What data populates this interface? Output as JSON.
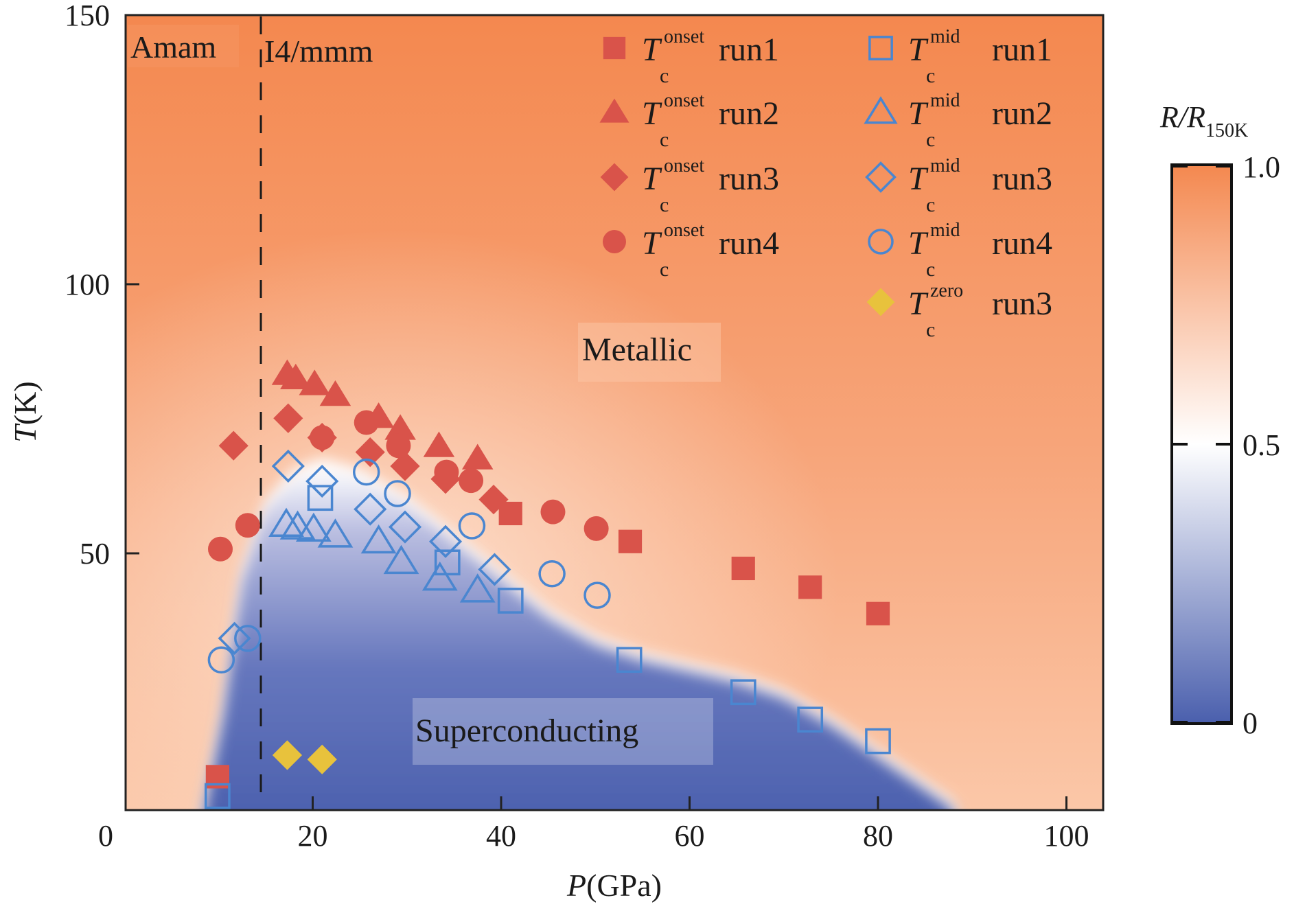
{
  "chart_data": {
    "type": "scatter",
    "title": "",
    "xlabel": "P(GPa)",
    "xlabel_italic": "P",
    "xlabel_unit": "(GPa)",
    "ylabel": "T(K)",
    "ylabel_italic": "T",
    "ylabel_unit": "(K)",
    "xlim": [
      0,
      104
    ],
    "ylim": [
      2.3,
      150
    ],
    "xticks": [
      0,
      20,
      40,
      60,
      80,
      100
    ],
    "yticks": [
      50,
      100,
      150
    ],
    "xtick_labels": [
      "0",
      "20",
      "40",
      "60",
      "80",
      "100"
    ],
    "ytick_labels": [
      "50",
      "100",
      "150"
    ],
    "grid": false,
    "legend_position": "top-right",
    "background": "heatmap of R/R150K (blue = superconducting, orange = metallic)",
    "phase_boundary_P": 14.5,
    "region_labels": {
      "left_phase": "Amam",
      "right_phase": "I4/mmm",
      "metallic": "Metallic",
      "superconducting": "Superconducting"
    },
    "series": [
      {
        "name": "Tc onset run1",
        "symbol": "T",
        "sub": "c",
        "sup": "onset",
        "run": "run1",
        "marker": "square",
        "filled": true,
        "color": "#d9534a",
        "points": [
          [
            9.9,
            8.5
          ],
          [
            41.0,
            57.4
          ],
          [
            53.7,
            52.2
          ],
          [
            65.7,
            47.2
          ],
          [
            72.8,
            43.7
          ],
          [
            80.0,
            38.8
          ]
        ]
      },
      {
        "name": "Tc onset run2",
        "symbol": "T",
        "sub": "c",
        "sup": "onset",
        "run": "run2",
        "marker": "triangle",
        "filled": true,
        "color": "#d9534a",
        "points": [
          [
            17.3,
            83.4
          ],
          [
            18.2,
            82.6
          ],
          [
            20.2,
            81.5
          ],
          [
            22.4,
            79.5
          ],
          [
            27.0,
            75.4
          ],
          [
            29.3,
            73.2
          ],
          [
            33.4,
            70.0
          ],
          [
            37.5,
            67.7
          ]
        ]
      },
      {
        "name": "Tc onset run3",
        "symbol": "T",
        "sub": "c",
        "sup": "onset",
        "run": "run3",
        "marker": "diamond",
        "filled": true,
        "color": "#d9534a",
        "points": [
          [
            11.6,
            70.0
          ],
          [
            17.4,
            75.1
          ],
          [
            21.0,
            71.5
          ],
          [
            26.1,
            68.8
          ],
          [
            29.8,
            66.2
          ],
          [
            34.1,
            63.8
          ],
          [
            39.2,
            60.0
          ]
        ]
      },
      {
        "name": "Tc onset run4",
        "symbol": "T",
        "sub": "c",
        "sup": "onset",
        "run": "run4",
        "marker": "circle",
        "filled": true,
        "color": "#d9534a",
        "points": [
          [
            10.2,
            50.8
          ],
          [
            13.1,
            55.2
          ],
          [
            21.0,
            71.5
          ],
          [
            25.7,
            74.3
          ],
          [
            29.1,
            70.0
          ],
          [
            34.2,
            65.1
          ],
          [
            36.8,
            63.5
          ],
          [
            45.5,
            57.7
          ],
          [
            50.1,
            54.6
          ]
        ]
      },
      {
        "name": "Tc mid run1",
        "symbol": "T",
        "sub": "c",
        "sup": "mid",
        "run": "run1",
        "marker": "square",
        "filled": false,
        "color": "#4a86d0",
        "points": [
          [
            9.9,
            4.9
          ],
          [
            20.8,
            60.3
          ],
          [
            34.3,
            48.3
          ],
          [
            41.0,
            41.2
          ],
          [
            53.6,
            30.2
          ],
          [
            65.7,
            24.2
          ],
          [
            72.8,
            19.1
          ],
          [
            80.0,
            15.1
          ]
        ]
      },
      {
        "name": "Tc mid run2",
        "symbol": "T",
        "sub": "c",
        "sup": "mid",
        "run": "run2",
        "marker": "triangle",
        "filled": false,
        "color": "#4a86d0",
        "points": [
          [
            17.2,
            55.4
          ],
          [
            18.4,
            54.9
          ],
          [
            20.1,
            54.5
          ],
          [
            22.4,
            53.4
          ],
          [
            27.0,
            52.3
          ],
          [
            29.4,
            48.5
          ],
          [
            33.5,
            45.4
          ],
          [
            37.5,
            43.2
          ]
        ]
      },
      {
        "name": "Tc mid run3",
        "symbol": "T",
        "sub": "c",
        "sup": "mid",
        "run": "run3",
        "marker": "diamond",
        "filled": false,
        "color": "#4a86d0",
        "points": [
          [
            11.7,
            34.2
          ],
          [
            17.4,
            66.2
          ],
          [
            21.0,
            63.4
          ],
          [
            26.1,
            58.2
          ],
          [
            29.8,
            54.9
          ],
          [
            34.1,
            52.2
          ],
          [
            39.3,
            47.0
          ]
        ]
      },
      {
        "name": "Tc mid run4",
        "symbol": "T",
        "sub": "c",
        "sup": "mid",
        "run": "run4",
        "marker": "circle",
        "filled": false,
        "color": "#4a86d0",
        "points": [
          [
            10.3,
            30.2
          ],
          [
            13.1,
            34.2
          ],
          [
            25.7,
            65.1
          ],
          [
            29.0,
            61.1
          ],
          [
            36.9,
            55.1
          ],
          [
            45.4,
            46.2
          ],
          [
            50.2,
            42.2
          ]
        ]
      },
      {
        "name": "Tc zero run3",
        "symbol": "T",
        "sub": "c",
        "sup": "zero",
        "run": "run3",
        "marker": "diamond",
        "filled": true,
        "color": "#e8c23c",
        "points": [
          [
            17.3,
            12.5
          ],
          [
            21.0,
            11.7
          ]
        ]
      }
    ],
    "boundary_curve_R05": [
      [
        8.5,
        2.3
      ],
      [
        10.5,
        20
      ],
      [
        12.5,
        45
      ],
      [
        15,
        58
      ],
      [
        18,
        64
      ],
      [
        21,
        66
      ],
      [
        25,
        64
      ],
      [
        30,
        59
      ],
      [
        35,
        52
      ],
      [
        40,
        45
      ],
      [
        45,
        38
      ],
      [
        50,
        33
      ],
      [
        55,
        30
      ],
      [
        60,
        28
      ],
      [
        65,
        26
      ],
      [
        70,
        23
      ],
      [
        75,
        18
      ],
      [
        80,
        12
      ],
      [
        85,
        6
      ],
      [
        88,
        2.3
      ]
    ],
    "colorbar": {
      "label": "R/R150K",
      "label_main": "R/R",
      "label_sub": "150K",
      "range": [
        0,
        1.0
      ],
      "ticks": [
        0,
        0.5,
        1.0
      ],
      "tick_labels": [
        "0",
        "0.5",
        "1.0"
      ],
      "colors": {
        "low": "#4a5fad",
        "mid": "#ffffff",
        "high": "#f4884f"
      }
    }
  }
}
